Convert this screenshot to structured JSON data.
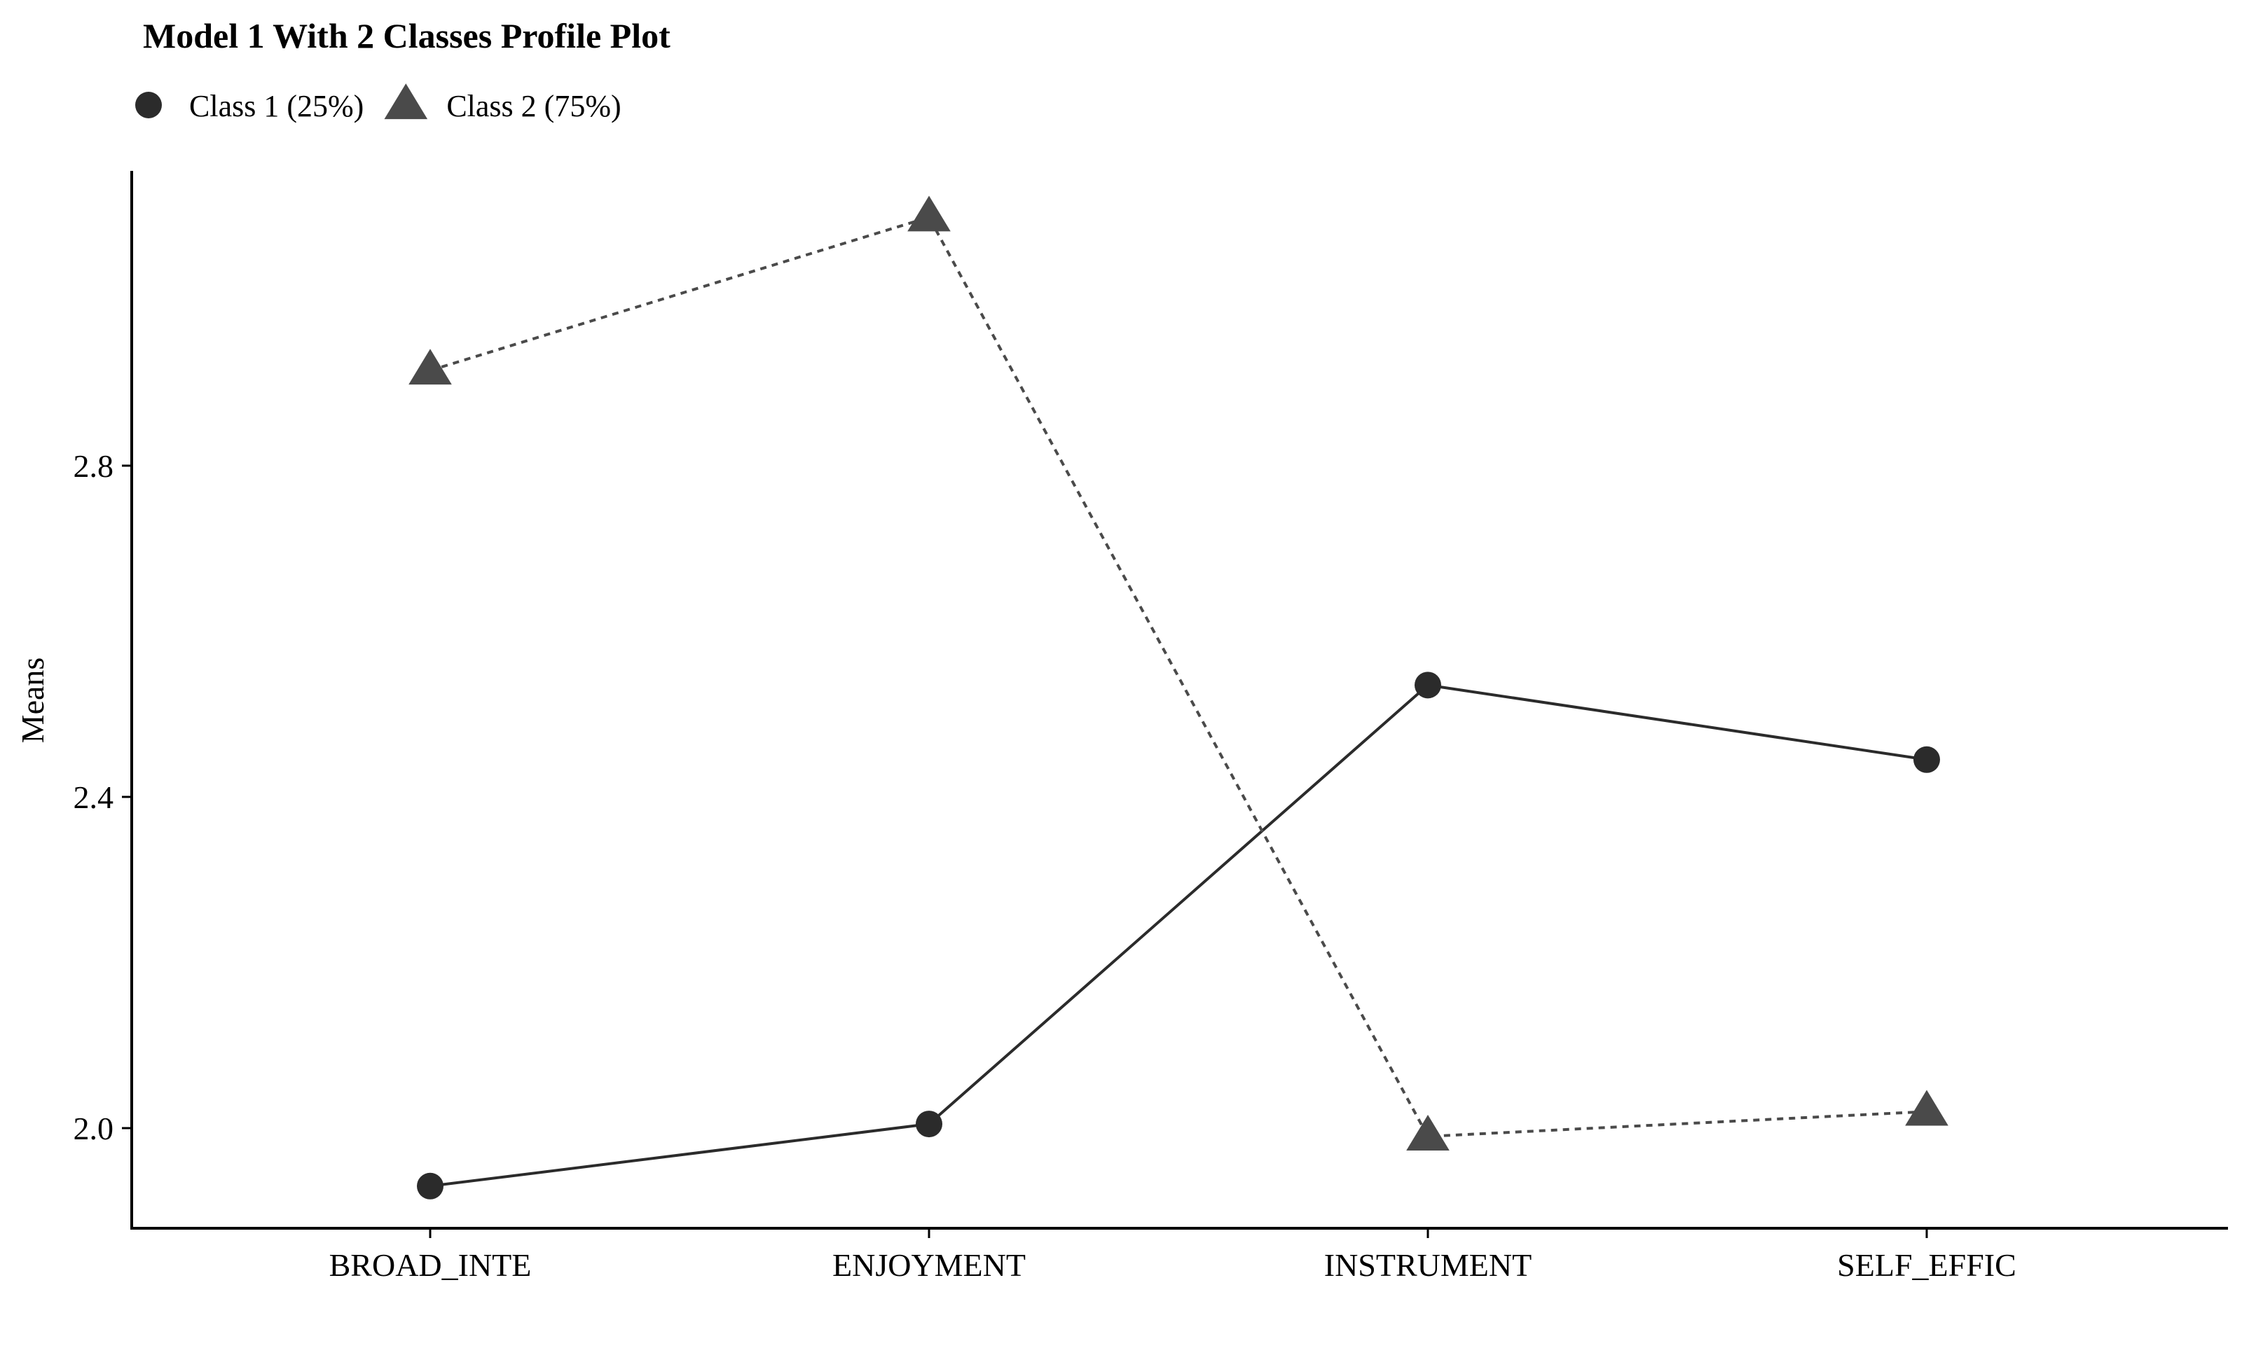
{
  "chart_data": {
    "type": "line",
    "title": "Model 1 With 2 Classes Profile Plot",
    "xlabel": "",
    "ylabel": "Means",
    "categories": [
      "BROAD_INTE",
      "ENJOYMENT",
      "INSTRUMENT",
      "SELF_EFFIC"
    ],
    "yticks": [
      2.0,
      2.4,
      2.8
    ],
    "ylim": [
      1.87,
      3.16
    ],
    "grid": false,
    "legend_position": "top-left",
    "series": [
      {
        "name": "Class 1 (25%)",
        "marker": "circle",
        "line_style": "solid",
        "color": "#2b2b2b",
        "values": [
          1.93,
          2.005,
          2.535,
          2.445
        ]
      },
      {
        "name": "Class 2 (75%)",
        "marker": "triangle",
        "line_style": "dotted",
        "color": "#4a4a4a",
        "values": [
          2.915,
          3.1,
          1.99,
          2.02
        ]
      }
    ]
  }
}
